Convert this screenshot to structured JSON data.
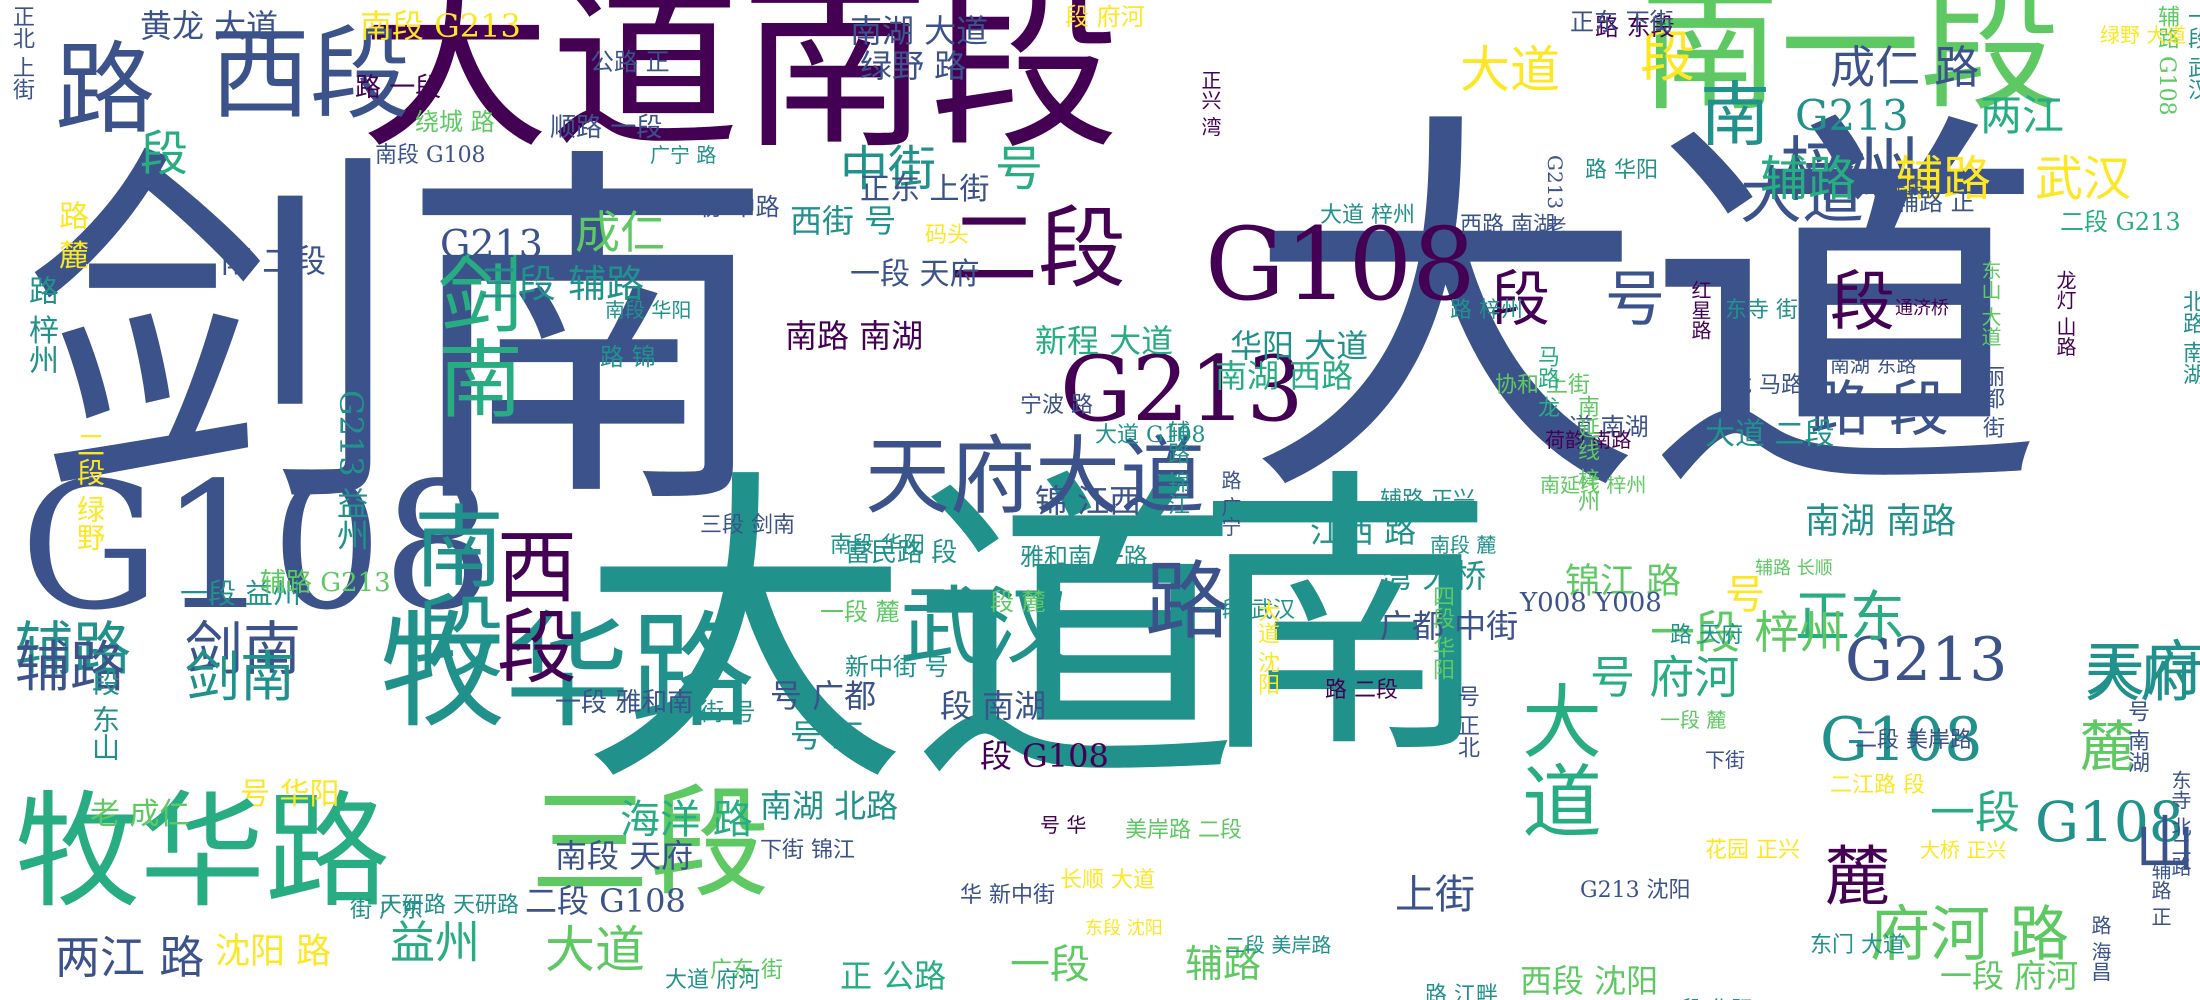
{
  "palette": {
    "deep_purple": "#440154",
    "indigo": "#3b528b",
    "teal": "#21918c",
    "green": "#27ad81",
    "lime": "#5ec962",
    "yellow": "#fde725"
  },
  "words": [
    {
      "text": "大道",
      "color": "#3b528b"
    },
    {
      "text": "剑南",
      "color": "#3b528b"
    },
    {
      "text": "大道",
      "color": "#21918c"
    },
    {
      "text": "南",
      "color": "#21918c"
    },
    {
      "text": "大道南段",
      "color": "#440154"
    },
    {
      "text": "南一段",
      "color": "#5ec962"
    },
    {
      "text": "G108",
      "color": "#3b528b"
    },
    {
      "text": "牧华路",
      "color": "#21918c"
    },
    {
      "text": "牧华路",
      "color": "#27ad81"
    },
    {
      "text": "三段",
      "color": "#5ec962"
    },
    {
      "text": "G108",
      "color": "#440154"
    },
    {
      "text": "西段",
      "color": "#3b528b"
    },
    {
      "text": "路",
      "color": "#3b528b"
    },
    {
      "text": "天府大道",
      "color": "#3b528b"
    },
    {
      "text": "武汉",
      "color": "#21918c"
    },
    {
      "text": "路",
      "color": "#3b528b"
    },
    {
      "text": "G213",
      "color": "#440154"
    },
    {
      "text": "二段",
      "color": "#440154"
    },
    {
      "text": "剑南",
      "color": "#27ad81"
    },
    {
      "text": "南段",
      "color": "#21918c"
    },
    {
      "text": "西段",
      "color": "#440154"
    },
    {
      "text": "大道",
      "color": "#27ad81"
    },
    {
      "text": "梓州",
      "color": "#3b528b"
    },
    {
      "text": "南",
      "color": "#21918c"
    },
    {
      "text": "段",
      "color": "#440154"
    },
    {
      "text": "G213",
      "color": "#3b528b"
    },
    {
      "text": "天府",
      "color": "#21918c"
    },
    {
      "text": "辅路",
      "color": "#21918c"
    },
    {
      "text": "剑南",
      "color": "#3b528b"
    },
    {
      "text": "黄龙 大道",
      "color": "#3b528b"
    },
    {
      "text": "南段 G213",
      "color": "#fde725"
    },
    {
      "text": "南湖 大道",
      "color": "#3b528b"
    },
    {
      "text": "绿野 路",
      "color": "#3b528b"
    },
    {
      "text": "成仁 路",
      "color": "#3b528b"
    },
    {
      "text": "大道",
      "color": "#fde725"
    },
    {
      "text": "段",
      "color": "#fde725"
    },
    {
      "text": "G213",
      "color": "#21918c"
    },
    {
      "text": "两江",
      "color": "#27ad81"
    },
    {
      "text": "大道",
      "color": "#3b528b"
    },
    {
      "text": "辅路",
      "color": "#27ad81"
    },
    {
      "text": "辅路",
      "color": "#fde725"
    },
    {
      "text": "武汉",
      "color": "#fde725"
    },
    {
      "text": "中街",
      "color": "#21918c"
    },
    {
      "text": "号",
      "color": "#27ad81"
    },
    {
      "text": "段",
      "color": "#27ad81"
    },
    {
      "text": "西街 号",
      "color": "#21918c"
    },
    {
      "text": "G213",
      "color": "#3b528b"
    },
    {
      "text": "成仁",
      "color": "#5ec962"
    },
    {
      "text": "三段 辅路",
      "color": "#21918c"
    },
    {
      "text": "段",
      "color": "#440154"
    },
    {
      "text": "号",
      "color": "#3b528b"
    },
    {
      "text": "南路 南湖",
      "color": "#440154"
    },
    {
      "text": "新程 大道",
      "color": "#27ad81"
    },
    {
      "text": "华阳 大道",
      "color": "#21918c"
    },
    {
      "text": "南湖 西路",
      "color": "#27ad81"
    },
    {
      "text": "路 段",
      "color": "#3b528b"
    },
    {
      "text": "南湖 南路",
      "color": "#21918c"
    },
    {
      "text": "锦江 路",
      "color": "#5ec962"
    },
    {
      "text": "号",
      "color": "#fde725"
    },
    {
      "text": "正东",
      "color": "#27ad81"
    },
    {
      "text": "一段 梓州",
      "color": "#5ec962"
    },
    {
      "text": "辅路",
      "color": "#3b528b"
    },
    {
      "text": "剑南",
      "color": "#21918c"
    },
    {
      "text": "号 府河",
      "color": "#27ad81"
    },
    {
      "text": "天府",
      "color": "#21918c"
    },
    {
      "text": "G108",
      "color": "#21918c"
    },
    {
      "text": "麓",
      "color": "#5ec962"
    },
    {
      "text": "G108",
      "color": "#21918c"
    },
    {
      "text": "一段",
      "color": "#27ad81"
    },
    {
      "text": "山",
      "color": "#3b528b"
    },
    {
      "text": "麓",
      "color": "#440154"
    },
    {
      "text": "府河 路",
      "color": "#5ec962"
    },
    {
      "text": "两江 路",
      "color": "#3b528b"
    },
    {
      "text": "沈阳 路",
      "color": "#fde725"
    },
    {
      "text": "益州",
      "color": "#27ad81"
    },
    {
      "text": "大道",
      "color": "#5ec962"
    },
    {
      "text": "一段",
      "color": "#5ec962"
    },
    {
      "text": "辅路",
      "color": "#5ec962"
    },
    {
      "text": "上街",
      "color": "#3b528b"
    },
    {
      "text": "海洋 路",
      "color": "#27ad81"
    },
    {
      "text": "二段 G108",
      "color": "#3b528b"
    },
    {
      "text": "南段 天府",
      "color": "#3b528b"
    },
    {
      "text": "正 公路",
      "color": "#27ad81"
    },
    {
      "text": "西段 沈阳",
      "color": "#5ec962"
    },
    {
      "text": "一段 府河",
      "color": "#5ec962"
    },
    {
      "text": "号 广都",
      "color": "#3b528b"
    },
    {
      "text": "段 南湖",
      "color": "#3b528b"
    },
    {
      "text": "号 正",
      "color": "#21918c"
    },
    {
      "text": "南湖 北路",
      "color": "#21918c"
    },
    {
      "text": "段 G108",
      "color": "#440154"
    },
    {
      "text": "广都 中街",
      "color": "#3b528b"
    },
    {
      "text": "湾 大桥",
      "color": "#21918c"
    },
    {
      "text": "江西 路",
      "color": "#21918c"
    },
    {
      "text": "锦 江西",
      "color": "#3b528b"
    },
    {
      "text": "G213 益州",
      "color": "#21918c"
    },
    {
      "text": "一段 益州",
      "color": "#21918c"
    },
    {
      "text": "号 华阳",
      "color": "#fde725"
    },
    {
      "text": "老 成仁",
      "color": "#5ec962"
    },
    {
      "text": "南 二段",
      "color": "#3b528b"
    },
    {
      "text": "正东 上街",
      "color": "#3b528b"
    },
    {
      "text": "一段 天府",
      "color": "#3b528b"
    },
    {
      "text": "辅路 G213",
      "color": "#5ec962"
    },
    {
      "text": "二段 G213",
      "color": "#27ad81"
    },
    {
      "text": "大道 梓州",
      "color": "#21918c"
    },
    {
      "text": "Y008 Y008",
      "color": "#3b528b"
    },
    {
      "text": "大道 南湖",
      "color": "#3b528b"
    },
    {
      "text": "大道 二段",
      "color": "#21918c"
    },
    {
      "text": "路 东段",
      "color": "#440154"
    },
    {
      "text": "正东 下街",
      "color": "#3b528b"
    },
    {
      "text": "公路 正",
      "color": "#3b528b"
    },
    {
      "text": "顺路 一段",
      "color": "#3b528b"
    },
    {
      "text": "路 一段",
      "color": "#440154"
    },
    {
      "text": "绕城 路",
      "color": "#5ec962"
    },
    {
      "text": "段 府河",
      "color": "#fde725"
    },
    {
      "text": "南段 G108",
      "color": "#3b528b"
    },
    {
      "text": "辅路 正",
      "color": "#3b528b"
    },
    {
      "text": "龙 马路",
      "color": "#3b528b"
    },
    {
      "text": "路 华阳",
      "color": "#21918c"
    },
    {
      "text": "东寺 街",
      "color": "#21918c"
    },
    {
      "text": "路 锦",
      "color": "#21918c"
    },
    {
      "text": "一段 麓",
      "color": "#5ec962"
    },
    {
      "text": "新中街 号",
      "color": "#21918c"
    },
    {
      "text": "富民路 段",
      "color": "#21918c"
    },
    {
      "text": "段 麓",
      "color": "#5ec962"
    },
    {
      "text": "二段 美岸路",
      "color": "#3b528b"
    },
    {
      "text": "南段 华阳",
      "color": "#21918c"
    },
    {
      "text": "三段 剑南",
      "color": "#3b528b"
    },
    {
      "text": "辅路 正兴",
      "color": "#21918c"
    },
    {
      "text": "路 梓州",
      "color": "#21918c"
    },
    {
      "text": "协 中路",
      "color": "#3b528b"
    },
    {
      "text": "一段 雅和南",
      "color": "#3b528b"
    },
    {
      "text": "街 号",
      "color": "#21918c"
    },
    {
      "text": "下街 锦江",
      "color": "#3b528b"
    },
    {
      "text": "华 新中街",
      "color": "#3b528b"
    },
    {
      "text": "天研路 天研路",
      "color": "#21918c"
    },
    {
      "text": "广东 街",
      "color": "#5ec962"
    },
    {
      "text": "南延线 梓州",
      "color": "#5ec962"
    },
    {
      "text": "段 华阳",
      "color": "#21918c"
    },
    {
      "text": "大道 府河",
      "color": "#21918c"
    },
    {
      "text": "街 广东",
      "color": "#21918c"
    },
    {
      "text": "雅和南 一路",
      "color": "#21918c"
    },
    {
      "text": "一段 武汉",
      "color": "#21918c"
    },
    {
      "text": "二江路 段",
      "color": "#fde725"
    },
    {
      "text": "G213 沈阳",
      "color": "#3b528b"
    },
    {
      "text": "东门 大道",
      "color": "#21918c"
    },
    {
      "text": "花园 正兴",
      "color": "#fde725"
    },
    {
      "text": "路 二段",
      "color": "#440154"
    },
    {
      "text": "长顺 大道",
      "color": "#fde725"
    },
    {
      "text": "荷韵 南路",
      "color": "#440154"
    },
    {
      "text": "协和 上街",
      "color": "#5ec962"
    },
    {
      "text": "路 东段",
      "color": "#3b528b"
    },
    {
      "text": "南湖 东路",
      "color": "#3b528b"
    },
    {
      "text": "美岸路 二段",
      "color": "#5ec962"
    },
    {
      "text": "南段 麓",
      "color": "#21918c"
    },
    {
      "text": "下街",
      "color": "#3b528b"
    },
    {
      "text": "号 华",
      "color": "#440154"
    },
    {
      "text": "西路 南湖",
      "color": "#3b528b"
    },
    {
      "text": "码头",
      "color": "#fde725"
    },
    {
      "text": "路 天府",
      "color": "#21918c"
    },
    {
      "text": "路 江畔",
      "color": "#21918c"
    },
    {
      "text": "辅路 长顺",
      "color": "#5ec962"
    },
    {
      "text": "东段 沈阳",
      "color": "#fde725"
    },
    {
      "text": "二段 美岸路",
      "color": "#21918c"
    },
    {
      "text": "通济桥",
      "color": "#440154"
    },
    {
      "text": "大桥 正兴",
      "color": "#fde725"
    },
    {
      "text": "宁波 路",
      "color": "#3b528b"
    },
    {
      "text": "大道 G108",
      "color": "#21918c"
    },
    {
      "text": "北路 南湖",
      "color": "#21918c"
    },
    {
      "text": "丽都 街",
      "color": "#3b528b"
    },
    {
      "text": "马路 龙",
      "color": "#27ad81"
    },
    {
      "text": "红星路",
      "color": "#440154"
    },
    {
      "text": "龙灯 山路",
      "color": "#440154"
    },
    {
      "text": "东山 大道",
      "color": "#5ec962"
    },
    {
      "text": "G213 老",
      "color": "#3b528b"
    },
    {
      "text": "正兴 湾",
      "color": "#440154"
    },
    {
      "text": "路 广宁",
      "color": "#3b528b"
    },
    {
      "text": "广宁 路",
      "color": "#21918c"
    },
    {
      "text": "南段 华阳",
      "color": "#21918c"
    },
    {
      "text": "一段 麓",
      "color": "#5ec962"
    },
    {
      "text": "东寺 北二路",
      "color": "#3b528b"
    },
    {
      "text": "辅路 正",
      "color": "#3b528b"
    },
    {
      "text": "路 海昌",
      "color": "#3b528b"
    },
    {
      "text": "路 梓州",
      "color": "#21918c"
    },
    {
      "text": "路 麓",
      "color": "#fde725"
    },
    {
      "text": "二段 绿野",
      "color": "#fde725"
    },
    {
      "text": "一段 东山",
      "color": "#21918c"
    },
    {
      "text": "辅路 锦江",
      "color": "#21918c"
    },
    {
      "text": "大道 沈阳",
      "color": "#fde725"
    },
    {
      "text": "南延线 梓州",
      "color": "#5ec962"
    },
    {
      "text": "四段 华阳",
      "color": "#5ec962"
    },
    {
      "text": "号 正北",
      "color": "#3b528b"
    },
    {
      "text": "号 南湖",
      "color": "#3b528b"
    },
    {
      "text": "一段 武汉",
      "color": "#21918c"
    },
    {
      "text": "辅路 G108",
      "color": "#5ec962"
    },
    {
      "text": "绿野 大道",
      "color": "#fde725"
    },
    {
      "text": "正北 上街",
      "color": "#3b528b"
    },
    {
      "text": "通济桥",
      "color": "#21918c"
    },
    {
      "text": "二江路",
      "color": "#fde725"
    },
    {
      "text": "街 东寺",
      "color": "#440154"
    },
    {
      "text": "红星路 三段",
      "color": "#21918c"
    },
    {
      "text": "滨江路 公路",
      "color": "#3b528b"
    },
    {
      "text": "通济桥 通济桥",
      "color": "#27ad81"
    },
    {
      "text": "马路 龙",
      "color": "#27ad81"
    },
    {
      "text": "大道 一段",
      "color": "#21918c"
    },
    {
      "text": "广都 上街",
      "color": "#3b528b"
    },
    {
      "text": "江 滨江",
      "color": "#3b528b"
    },
    {
      "text": "黄龙 大道",
      "color": "#27ad81"
    },
    {
      "text": "二环路 段",
      "color": "#440154"
    },
    {
      "text": "正北 中街",
      "color": "#5ec962"
    },
    {
      "text": "辅路 锦江",
      "color": "#21918c"
    },
    {
      "text": "南段",
      "color": "#3b528b"
    },
    {
      "text": "天府 大道",
      "color": "#5ec962"
    }
  ]
}
